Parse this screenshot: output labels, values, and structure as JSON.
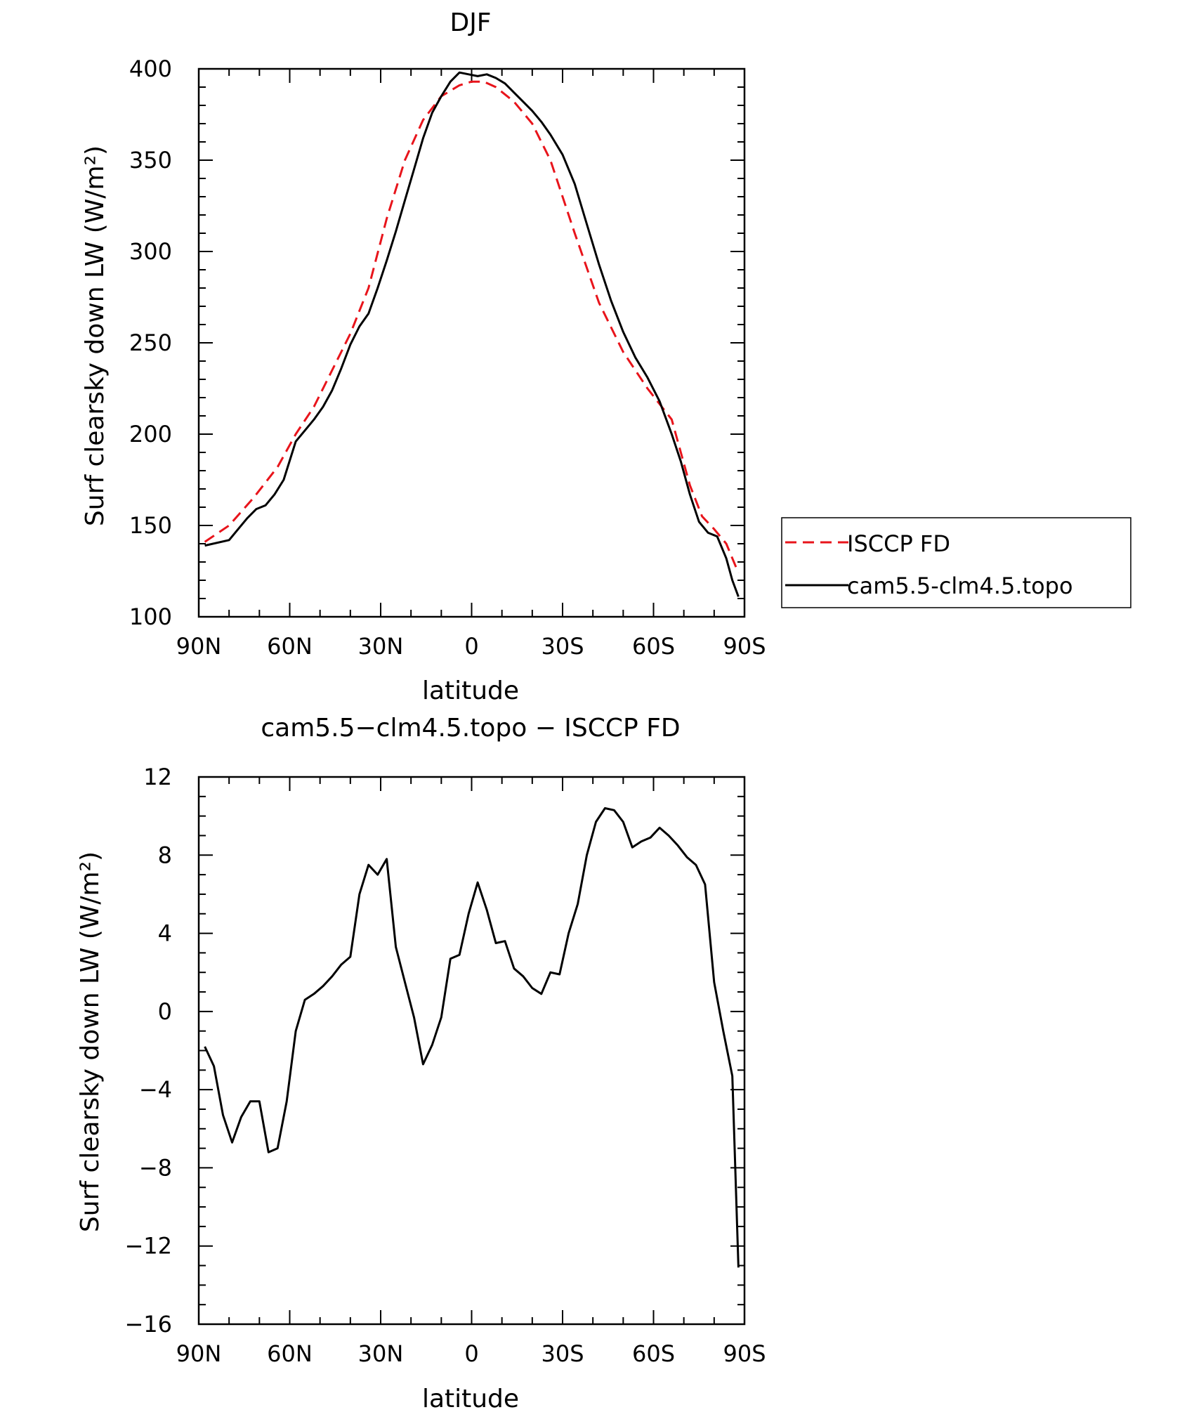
{
  "chart_data": [
    {
      "type": "line",
      "title": "DJF",
      "xlabel": "latitude",
      "ylabel": "Surf clearsky down LW (W/m²)",
      "xlim": [
        90,
        -90
      ],
      "ylim": [
        100,
        400
      ],
      "x_tick_values": [
        90,
        60,
        30,
        0,
        -30,
        -60,
        -90
      ],
      "x_tick_labels": [
        "90N",
        "60N",
        "30N",
        "0",
        "30S",
        "60S",
        "90S"
      ],
      "y_tick_values": [
        100,
        150,
        200,
        250,
        300,
        350,
        400
      ],
      "y_tick_labels": [
        "100",
        "150",
        "200",
        "250",
        "300",
        "350",
        "400"
      ],
      "grid": false,
      "legend": "outside-right",
      "series": [
        {
          "name": "ISCCP FD",
          "color": "#e8141b",
          "style": "dashed",
          "x": [
            88,
            80,
            72,
            64,
            58,
            52,
            46,
            40,
            34,
            28,
            22,
            16,
            10,
            4,
            0,
            -4,
            -8,
            -14,
            -20,
            -26,
            -34,
            -42,
            -50,
            -58,
            -66,
            -72,
            -76,
            -80,
            -84,
            -88
          ],
          "y": [
            141,
            150,
            165,
            182,
            200,
            215,
            235,
            255,
            280,
            318,
            350,
            372,
            385,
            391,
            393,
            393,
            390,
            382,
            370,
            350,
            310,
            272,
            245,
            225,
            208,
            172,
            155,
            148,
            140,
            124
          ]
        },
        {
          "name": "cam5.5-clm4.5.topo",
          "color": "#000000",
          "style": "solid",
          "x": [
            88,
            80,
            77,
            74,
            71,
            68,
            65,
            62,
            58,
            55,
            52,
            49,
            46,
            43,
            40,
            37,
            34,
            31,
            28,
            25,
            22,
            19,
            16,
            13,
            10,
            7,
            4,
            1,
            -2,
            -5,
            -8,
            -11,
            -14,
            -17,
            -20,
            -23,
            -26,
            -30,
            -34,
            -38,
            -42,
            -46,
            -50,
            -54,
            -58,
            -62,
            -66,
            -69,
            -72,
            -75,
            -78,
            -81,
            -84,
            -86,
            -88
          ],
          "y": [
            139,
            142,
            148,
            154,
            159,
            161,
            167,
            175,
            196,
            202,
            208,
            215,
            224,
            236,
            249,
            259,
            266,
            280,
            295,
            311,
            328,
            345,
            362,
            376,
            385,
            393,
            398,
            397,
            396,
            397,
            395,
            392,
            387,
            382,
            377,
            371,
            364,
            353,
            337,
            315,
            293,
            273,
            256,
            242,
            231,
            218,
            200,
            185,
            167,
            152,
            146,
            144,
            132,
            120,
            111
          ]
        }
      ]
    },
    {
      "type": "line",
      "title": "cam5.5−clm4.5.topo − ISCCP FD",
      "xlabel": "latitude",
      "ylabel": "Surf clearsky down LW (W/m²)",
      "xlim": [
        90,
        -90
      ],
      "ylim": [
        -16,
        12
      ],
      "x_tick_values": [
        90,
        60,
        30,
        0,
        -30,
        -60,
        -90
      ],
      "x_tick_labels": [
        "90N",
        "60N",
        "30N",
        "0",
        "30S",
        "60S",
        "90S"
      ],
      "y_tick_values": [
        12,
        8,
        4,
        0,
        -4,
        -8,
        -12,
        -16
      ],
      "y_tick_labels": [
        "12",
        "8",
        "4",
        "0",
        "−4",
        "−8",
        "−12",
        "−16"
      ],
      "grid": false,
      "series": [
        {
          "color": "#000000",
          "style": "solid",
          "x": [
            88,
            85,
            82,
            79,
            76,
            73,
            70,
            67,
            64,
            61,
            58,
            55,
            52,
            49,
            46,
            43,
            40,
            37,
            34,
            31,
            28,
            25,
            22,
            19,
            16,
            13,
            10,
            7,
            4,
            1,
            -2,
            -5,
            -8,
            -11,
            -14,
            -17,
            -20,
            -23,
            -26,
            -29,
            -32,
            -35,
            -38,
            -41,
            -44,
            -47,
            -50,
            -53,
            -56,
            -59,
            -62,
            -65,
            -68,
            -71,
            -74,
            -77,
            -80,
            -83,
            -86,
            -88
          ],
          "y": [
            -1.8,
            -2.8,
            -5.3,
            -6.7,
            -5.4,
            -4.6,
            -4.6,
            -7.2,
            -7.0,
            -4.6,
            -1.0,
            0.6,
            0.9,
            1.3,
            1.8,
            2.4,
            2.8,
            6.0,
            7.5,
            7.0,
            7.8,
            3.3,
            1.5,
            -0.3,
            -2.7,
            -1.7,
            -0.3,
            2.7,
            2.9,
            5.0,
            6.6,
            5.2,
            3.5,
            3.6,
            2.2,
            1.8,
            1.2,
            0.9,
            2.0,
            1.9,
            4.0,
            5.5,
            8.0,
            9.7,
            10.4,
            10.3,
            9.7,
            8.4,
            8.7,
            8.9,
            9.4,
            9.0,
            8.5,
            7.9,
            7.5,
            6.5,
            1.5,
            -1.0,
            -3.3,
            -13.1
          ]
        }
      ]
    }
  ]
}
